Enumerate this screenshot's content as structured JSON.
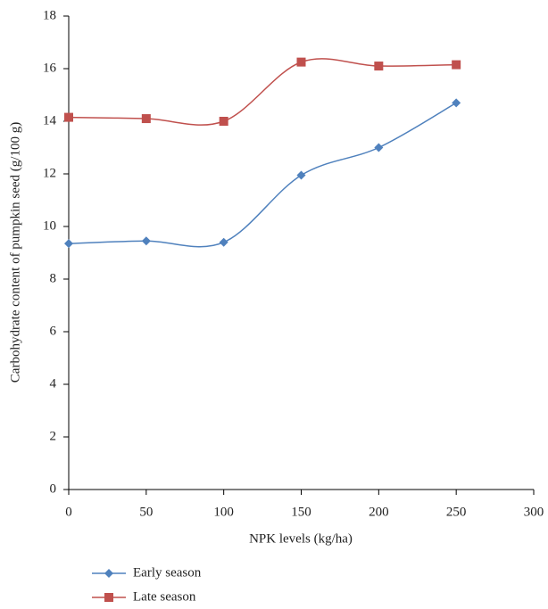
{
  "chart_data": {
    "type": "line",
    "xlabel": "NPK levels (kg/ha)",
    "ylabel": "Carbohydrate content of pumpkin seed (g/100 g)",
    "x": [
      0,
      50,
      100,
      150,
      200,
      250
    ],
    "series": [
      {
        "name": "Early season",
        "color": "#4f81bd",
        "marker": "diamond",
        "values": [
          9.35,
          9.45,
          9.4,
          11.95,
          13.0,
          14.7
        ]
      },
      {
        "name": "Late season",
        "color": "#c0504d",
        "marker": "square",
        "values": [
          14.15,
          14.1,
          14.0,
          16.25,
          16.1,
          16.15
        ]
      }
    ],
    "xlim": [
      0,
      300
    ],
    "xticks": [
      0,
      50,
      100,
      150,
      200,
      250,
      300
    ],
    "ylim": [
      0,
      18
    ],
    "yticks": [
      0,
      2,
      4,
      6,
      8,
      10,
      12,
      14,
      16,
      18
    ],
    "smooth": true,
    "grid": false,
    "legend": "bottom"
  }
}
